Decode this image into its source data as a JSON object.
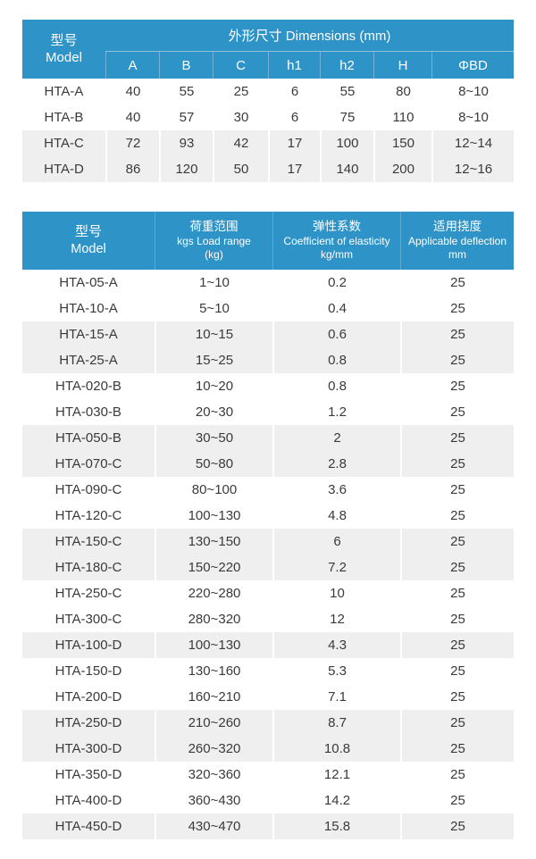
{
  "colors": {
    "header_bg": "#2e93c6",
    "header_text": "#ffffff",
    "shaded_row_bg": "#efefef",
    "row_bg": "#ffffff",
    "body_text": "#3a3a3a"
  },
  "dimensions_table": {
    "model_header": {
      "zh": "型号",
      "en": "Model"
    },
    "group_header": "外形尺寸 Dimensions (mm)",
    "columns": [
      "A",
      "B",
      "C",
      "h1",
      "h2",
      "H",
      "ΦBD"
    ],
    "rows": [
      {
        "model": "HTA-A",
        "values": [
          "40",
          "55",
          "25",
          "6",
          "55",
          "80",
          "8~10"
        ],
        "shaded": false
      },
      {
        "model": "HTA-B",
        "values": [
          "40",
          "57",
          "30",
          "6",
          "75",
          "110",
          "8~10"
        ],
        "shaded": false
      },
      {
        "model": "HTA-C",
        "values": [
          "72",
          "93",
          "42",
          "17",
          "100",
          "150",
          "12~14"
        ],
        "shaded": true
      },
      {
        "model": "HTA-D",
        "values": [
          "86",
          "120",
          "50",
          "17",
          "140",
          "200",
          "12~16"
        ],
        "shaded": true
      }
    ]
  },
  "spec_table": {
    "headers": [
      {
        "lines": [
          "型号",
          "Model"
        ]
      },
      {
        "lines": [
          "荷重范围",
          "kgs Load range",
          "(kg)"
        ]
      },
      {
        "lines": [
          "弹性系数",
          "Coefficient of elasticity",
          "kg/mm"
        ]
      },
      {
        "lines": [
          "适用挠度",
          "Applicable deflection",
          "mm"
        ]
      }
    ],
    "rows": [
      {
        "model": "HTA-05-A",
        "load_range": "1~10",
        "coefficient": "0.2",
        "deflection": "25",
        "shaded": false
      },
      {
        "model": "HTA-10-A",
        "load_range": "5~10",
        "coefficient": "0.4",
        "deflection": "25",
        "shaded": false
      },
      {
        "model": "HTA-15-A",
        "load_range": "10~15",
        "coefficient": "0.6",
        "deflection": "25",
        "shaded": true
      },
      {
        "model": "HTA-25-A",
        "load_range": "15~25",
        "coefficient": "0.8",
        "deflection": "25",
        "shaded": true
      },
      {
        "model": "HTA-020-B",
        "load_range": "10~20",
        "coefficient": "0.8",
        "deflection": "25",
        "shaded": false
      },
      {
        "model": "HTA-030-B",
        "load_range": "20~30",
        "coefficient": "1.2",
        "deflection": "25",
        "shaded": false
      },
      {
        "model": "HTA-050-B",
        "load_range": "30~50",
        "coefficient": "2",
        "deflection": "25",
        "shaded": true
      },
      {
        "model": "HTA-070-C",
        "load_range": "50~80",
        "coefficient": "2.8",
        "deflection": "25",
        "shaded": true
      },
      {
        "model": "HTA-090-C",
        "load_range": "80~100",
        "coefficient": "3.6",
        "deflection": "25",
        "shaded": false
      },
      {
        "model": "HTA-120-C",
        "load_range": "100~130",
        "coefficient": "4.8",
        "deflection": "25",
        "shaded": false
      },
      {
        "model": "HTA-150-C",
        "load_range": "130~150",
        "coefficient": "6",
        "deflection": "25",
        "shaded": true
      },
      {
        "model": "HTA-180-C",
        "load_range": "150~220",
        "coefficient": "7.2",
        "deflection": "25",
        "shaded": true
      },
      {
        "model": "HTA-250-C",
        "load_range": "220~280",
        "coefficient": "10",
        "deflection": "25",
        "shaded": false
      },
      {
        "model": "HTA-300-C",
        "load_range": "280~320",
        "coefficient": "12",
        "deflection": "25",
        "shaded": false
      },
      {
        "model": "HTA-100-D",
        "load_range": "100~130",
        "coefficient": "4.3",
        "deflection": "25",
        "shaded": true
      },
      {
        "model": "HTA-150-D",
        "load_range": "130~160",
        "coefficient": "5.3",
        "deflection": "25",
        "shaded": false
      },
      {
        "model": "HTA-200-D",
        "load_range": "160~210",
        "coefficient": "7.1",
        "deflection": "25",
        "shaded": false
      },
      {
        "model": "HTA-250-D",
        "load_range": "210~260",
        "coefficient": "8.7",
        "deflection": "25",
        "shaded": true
      },
      {
        "model": "HTA-300-D",
        "load_range": "260~320",
        "coefficient": "10.8",
        "deflection": "25",
        "shaded": true
      },
      {
        "model": "HTA-350-D",
        "load_range": "320~360",
        "coefficient": "12.1",
        "deflection": "25",
        "shaded": false
      },
      {
        "model": "HTA-400-D",
        "load_range": "360~430",
        "coefficient": "14.2",
        "deflection": "25",
        "shaded": false
      },
      {
        "model": "HTA-450-D",
        "load_range": "430~470",
        "coefficient": "15.8",
        "deflection": "25",
        "shaded": true
      }
    ]
  }
}
